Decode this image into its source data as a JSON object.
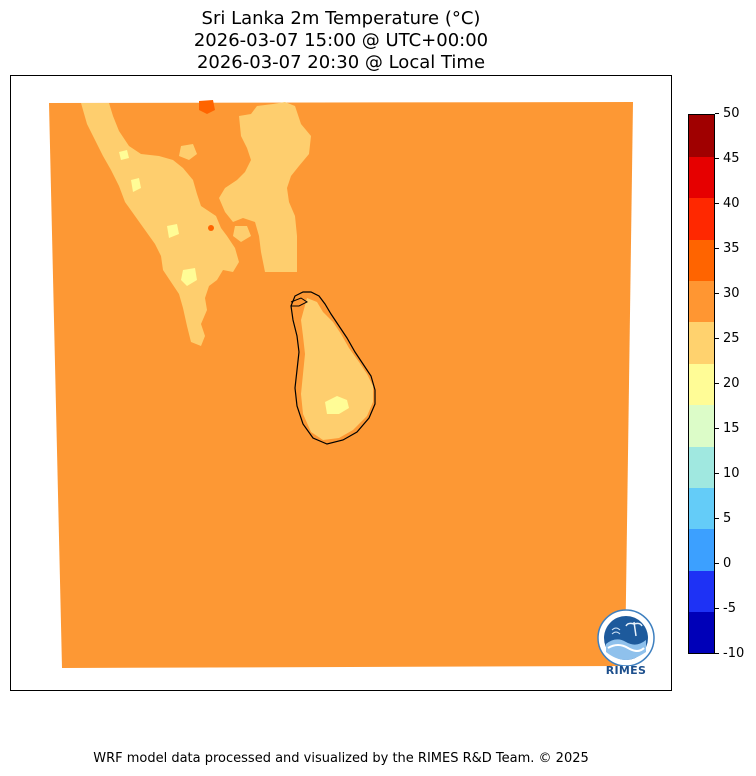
{
  "title": {
    "line1": "Sri Lanka 2m Temperature (°C)",
    "line2": "2026-03-07 15:00 @ UTC+00:00",
    "line3": "2026-03-07 20:30 @ Local Time"
  },
  "colorbar": {
    "min": -10,
    "max": 50,
    "step": 5,
    "tick_labels": [
      "50",
      "45",
      "40",
      "35",
      "30",
      "25",
      "20",
      "15",
      "10",
      "5",
      "0",
      "-5",
      "-10"
    ],
    "colors_low_to_high": [
      "#0000b8",
      "#1e32f5",
      "#3ca0ff",
      "#64ccf8",
      "#a0e8e0",
      "#dcfcc8",
      "#fffc96",
      "#ffd26e",
      "#ff9632",
      "#ff6400",
      "#ff2800",
      "#e60000",
      "#a00000"
    ]
  },
  "map": {
    "field": "2m temperature",
    "background_class_color": "#fd9834",
    "land_class_color": "#fece6e",
    "warm_spot_color": "#ff6400",
    "cool_spot_color": "#fffc96",
    "coastline_color": "#000000"
  },
  "logo": {
    "text": "RIMES",
    "icon": "rimes-globe-logo-icon"
  },
  "footer": {
    "text": "WRF model data processed and visualized by the RIMES R&D Team. © 2025"
  }
}
